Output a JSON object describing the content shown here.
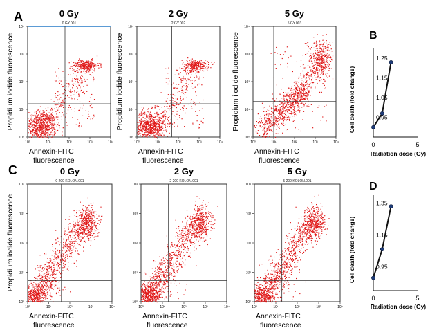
{
  "panel_letters": [
    "A",
    "B",
    "C",
    "D"
  ],
  "flow_plots": [
    {
      "panel": "A",
      "dose_title": "0 Gy",
      "file_label": "0 GY.001",
      "ylabel": "Propidium iodide  fluorescence",
      "xlabel_line1": "Annexin-FITC",
      "xlabel_line2": "fluorescence",
      "pattern": "low"
    },
    {
      "panel": "A",
      "dose_title": "2 Gy",
      "file_label": "2 GY.002",
      "ylabel": "Propidium iodide  fluorescence",
      "xlabel_line1": "Annexin-FITC",
      "xlabel_line2": "fluorescence",
      "pattern": "low"
    },
    {
      "panel": "A",
      "dose_title": "5 Gy",
      "file_label": "5 GY.003",
      "ylabel": "Propidium i odide  fluorescence",
      "xlabel_line1": "Annexin-FITC",
      "xlabel_line2": "fluorescence",
      "pattern": "high"
    },
    {
      "panel": "C",
      "dose_title": "0 Gy",
      "file_label": "0 200 KOLON.001",
      "ylabel": "Propidium iodide  fluorescence",
      "xlabel_line1": "Annexin-FITC",
      "xlabel_line2": "fluorescence",
      "pattern": "diag"
    },
    {
      "panel": "C",
      "dose_title": "2 Gy",
      "file_label": "2 200 KOLON.001",
      "ylabel": "",
      "xlabel_line1": "Annexin-FITC",
      "xlabel_line2": "fluorescence",
      "pattern": "diag"
    },
    {
      "panel": "C",
      "dose_title": "5 Gy",
      "file_label": "5 200 KOLON.001",
      "ylabel": "",
      "xlabel_line1": "Annexin-FITC",
      "xlabel_line2": "fluorescence",
      "pattern": "diag"
    }
  ],
  "log_tick_labels": [
    "10⁰",
    "10¹",
    "10²",
    "10³",
    "10⁴"
  ],
  "colors": {
    "dots": "#e01818",
    "axis": "#333333",
    "line": "#111111",
    "marker": "#1f3d7a",
    "file_bar": "#5b9bd5"
  },
  "chart_data": [
    {
      "type": "line",
      "panel": "B",
      "x": [
        0,
        1,
        2
      ],
      "values": [
        0.9,
        0.97,
        1.23
      ],
      "xlabel": "Radiation dose (Gy)",
      "ylabel": "Cell death (fold change)",
      "xticks": [
        "0",
        "5"
      ],
      "xtick_values": [
        0,
        5
      ],
      "yticks": [
        "1.25",
        "1.15",
        "1.05",
        "0.95"
      ],
      "ytick_values": [
        1.25,
        1.15,
        1.05,
        0.95
      ],
      "xlim": [
        0,
        5
      ],
      "ylim": [
        0.85,
        1.3
      ]
    },
    {
      "type": "line",
      "panel": "D",
      "x": [
        0,
        1,
        2
      ],
      "values": [
        0.88,
        1.06,
        1.33
      ],
      "xlabel": "Radiation dose (Gy)",
      "ylabel": "Cell death (fold change)",
      "xticks": [
        "0",
        "5"
      ],
      "xtick_values": [
        0,
        5
      ],
      "yticks": [
        "1.35",
        "1.15",
        "0.95"
      ],
      "ytick_values": [
        1.35,
        1.15,
        0.95
      ],
      "xlim": [
        0,
        5
      ],
      "ylim": [
        0.8,
        1.4
      ]
    }
  ]
}
